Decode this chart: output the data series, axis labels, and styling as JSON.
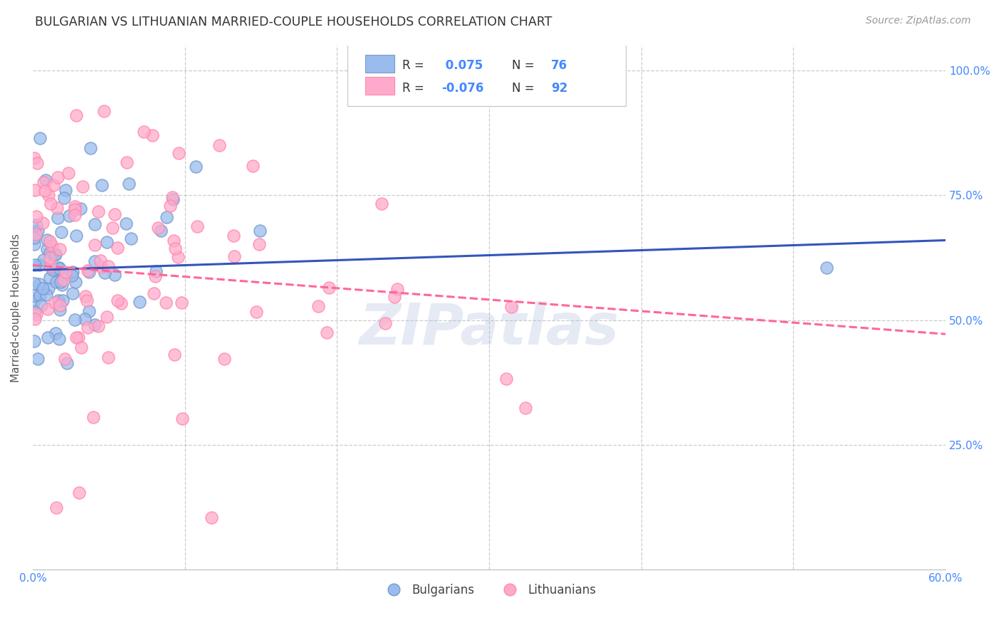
{
  "title": "BULGARIAN VS LITHUANIAN MARRIED-COUPLE HOUSEHOLDS CORRELATION CHART",
  "source": "Source: ZipAtlas.com",
  "ylabel": "Married-couple Households",
  "bg_color": "#ffffff",
  "grid_color": "#cccccc",
  "blue_color": "#99bbee",
  "pink_color": "#ffaacc",
  "blue_edge_color": "#7799cc",
  "pink_edge_color": "#ff88aa",
  "blue_line_color": "#3355bb",
  "pink_line_color": "#ff6699",
  "title_color": "#333333",
  "axis_color": "#4488FF",
  "xmin": 0.0,
  "xmax": 0.6,
  "ymin": 0.0,
  "ymax": 1.05,
  "yticks": [
    0.0,
    0.25,
    0.5,
    0.75,
    1.0
  ],
  "ytick_labels": [
    "",
    "25.0%",
    "50.0%",
    "75.0%",
    "100.0%"
  ],
  "xticks": [
    0.0,
    0.1,
    0.2,
    0.3,
    0.4,
    0.5,
    0.6
  ],
  "xtick_labels": [
    "0.0%",
    "",
    "",
    "",
    "",
    "",
    "60.0%"
  ],
  "watermark": "ZIPatlas",
  "watermark_color": "#aabbdd",
  "watermark_alpha": 0.3
}
